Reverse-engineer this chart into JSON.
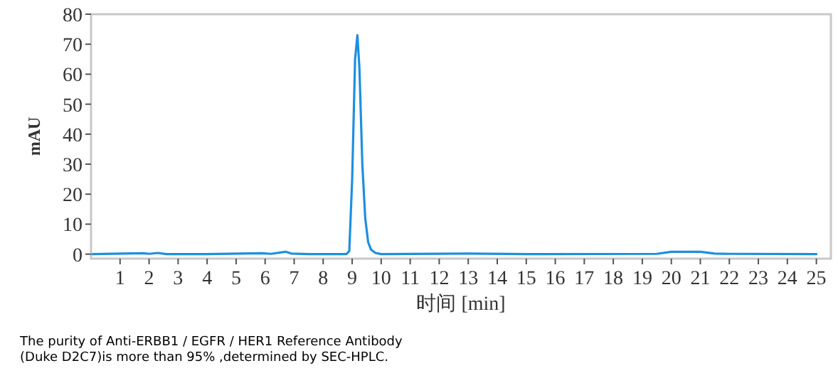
{
  "chart_data": {
    "type": "line",
    "xlabel": "时间 [min]",
    "ylabel": "mAU",
    "annotations": [
      "The purity of Anti-ERBB1 / EGFR / HER1 Reference Antibody (Duke D2C7)is more than 95% ,determined by SEC-HPLC."
    ],
    "x": [
      0.05,
      1.8,
      2.0,
      2.3,
      2.6,
      4,
      5.9,
      6.2,
      6.7,
      6.9,
      7.5,
      8.8,
      8.9,
      9.0,
      9.1,
      9.18,
      9.25,
      9.35,
      9.45,
      9.55,
      9.65,
      9.8,
      10,
      13,
      15,
      19.5,
      20,
      21,
      21.5,
      22,
      25
    ],
    "series": [
      {
        "color": "#1e8fe0",
        "values": [
          0,
          0.3,
          0.1,
          0.4,
          0,
          0,
          0.3,
          0.1,
          0.8,
          0.2,
          0,
          0,
          1,
          25,
          65,
          73,
          62,
          30,
          12,
          4,
          1.5,
          0.4,
          0,
          0.2,
          0,
          0.1,
          0.8,
          0.8,
          0.2,
          0.1,
          0
        ]
      }
    ],
    "xlim": [
      0,
      25.5
    ],
    "ylim": [
      -1.5,
      80
    ],
    "xticks": [
      1,
      2,
      3,
      4,
      5,
      6,
      7,
      8,
      9,
      10,
      11,
      12,
      13,
      14,
      15,
      16,
      17,
      18,
      19,
      20,
      21,
      22,
      23,
      24,
      25
    ],
    "yticks": [
      0,
      10,
      20,
      30,
      40,
      50,
      60,
      70,
      80
    ]
  }
}
